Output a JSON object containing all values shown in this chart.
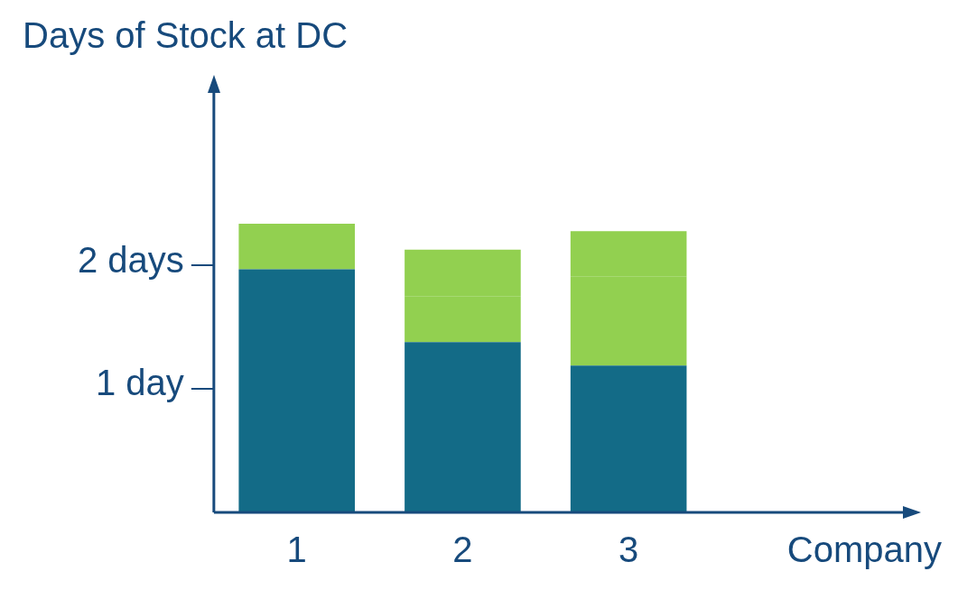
{
  "chart_data": {
    "type": "bar",
    "ylabel": "Days of Stock at DC",
    "xlabel": "Company",
    "categories": [
      "1",
      "2",
      "3"
    ],
    "stacked": true,
    "series": [
      {
        "color": "#136b87",
        "values": [
          1.97,
          1.38,
          1.19
        ]
      },
      {
        "color": "#92d050",
        "values": [
          0.37,
          0.37,
          0.36
        ]
      },
      {
        "color": "#92d050",
        "values": [
          null,
          0.38,
          0.36
        ]
      },
      {
        "color": "#92d050",
        "values": [
          null,
          null,
          0.37
        ]
      }
    ],
    "ylim": [
      0,
      3.4
    ],
    "yticks": [
      {
        "value": 1,
        "label": "1 day"
      },
      {
        "value": 2,
        "label": "2 days"
      }
    ],
    "grid": false,
    "legend": false
  }
}
